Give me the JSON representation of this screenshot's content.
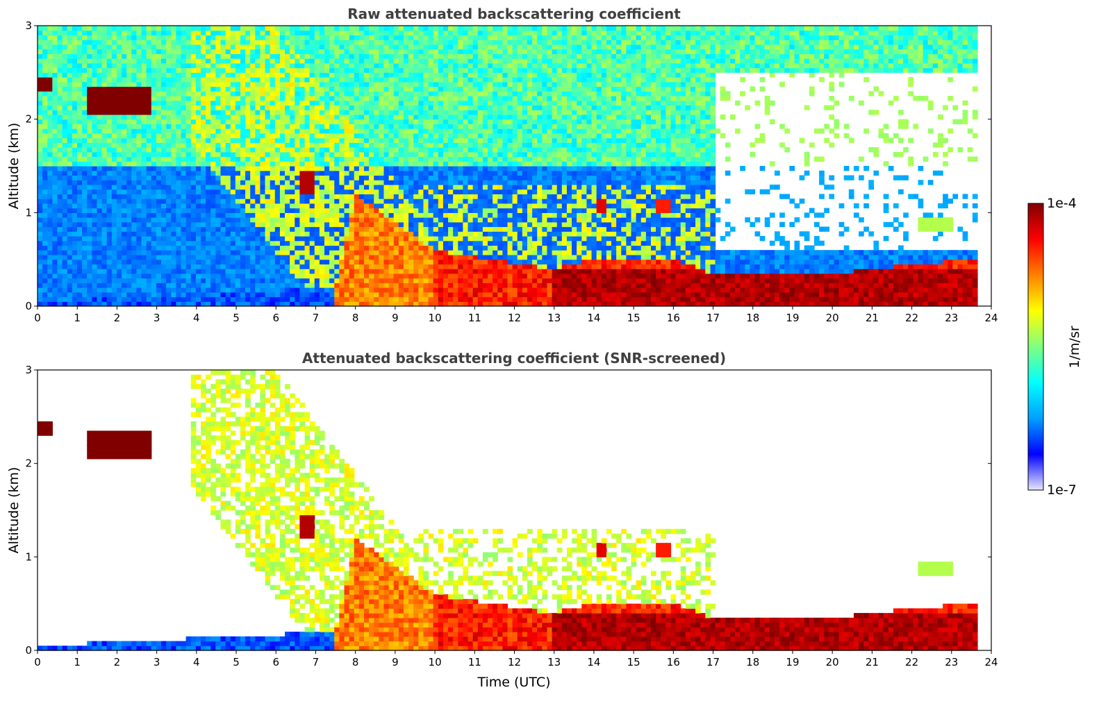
{
  "chart_data": [
    {
      "type": "heatmap",
      "title": "Raw attenuated backscattering coefficient",
      "xlabel": "",
      "ylabel": "Altitude (km)",
      "xlim": [
        0,
        24
      ],
      "ylim": [
        0,
        3
      ],
      "xticks": [
        0,
        1,
        2,
        3,
        4,
        5,
        6,
        7,
        8,
        9,
        10,
        11,
        12,
        13,
        14,
        15,
        16,
        17,
        18,
        19,
        20,
        21,
        22,
        23,
        24
      ],
      "yticks": [
        0,
        1,
        2,
        3
      ],
      "data_end_time": 23.65,
      "screened": false,
      "description_of_features": {
        "boundary_layer_top_km": [
          {
            "t": 0,
            "h": 0.05
          },
          {
            "t": 7.5,
            "h": 0.2
          },
          {
            "t": 8,
            "h": 1.2
          },
          {
            "t": 10,
            "h": 0.6
          },
          {
            "t": 13,
            "h": 0.4
          },
          {
            "t": 14,
            "h": 0.5
          },
          {
            "t": 16,
            "h": 0.5
          },
          {
            "t": 17,
            "h": 0.35
          },
          {
            "t": 20,
            "h": 0.35
          },
          {
            "t": 22,
            "h": 0.45
          },
          {
            "t": 23.65,
            "h": 0.5
          }
        ],
        "cloud_layers": [
          {
            "t_start": 0.0,
            "t_end": 0.35,
            "h_bottom": 2.3,
            "h_top": 2.45,
            "level": 1.0
          },
          {
            "t_start": 1.3,
            "t_end": 2.9,
            "h_bottom": 2.05,
            "h_top": 2.35,
            "level": 1.0
          },
          {
            "t_start": 6.65,
            "t_end": 7.0,
            "h_bottom": 1.2,
            "h_top": 1.45,
            "level": 0.95
          },
          {
            "t_start": 14.1,
            "t_end": 14.35,
            "h_bottom": 1.0,
            "h_top": 1.15,
            "level": 0.9
          },
          {
            "t_start": 15.6,
            "t_end": 15.9,
            "h_bottom": 1.0,
            "h_top": 1.15,
            "level": 0.85
          },
          {
            "t_start": 22.1,
            "t_end": 23.0,
            "h_bottom": 0.8,
            "h_top": 0.95,
            "level": 0.55
          }
        ]
      }
    },
    {
      "type": "heatmap",
      "title": "Attenuated backscattering coefficient (SNR-screened)",
      "xlabel": "Time (UTC)",
      "ylabel": "Altitude (km)",
      "xlim": [
        0,
        24
      ],
      "ylim": [
        0,
        3
      ],
      "xticks": [
        0,
        1,
        2,
        3,
        4,
        5,
        6,
        7,
        8,
        9,
        10,
        11,
        12,
        13,
        14,
        15,
        16,
        17,
        18,
        19,
        20,
        21,
        22,
        23,
        24
      ],
      "yticks": [
        0,
        1,
        2,
        3
      ],
      "data_end_time": 23.65,
      "screened": true
    }
  ],
  "colorbar": {
    "label": "1/m/sr",
    "max_label": "1e-4",
    "min_label": "1e-7",
    "scale": "log",
    "range": [
      1e-07,
      0.0001
    ],
    "colormap": "jet",
    "colors": [
      "#e6e6ff",
      "#0000ff",
      "#00a0ff",
      "#00ffff",
      "#80ff80",
      "#ffff00",
      "#ff8000",
      "#ff0000",
      "#800000"
    ]
  }
}
